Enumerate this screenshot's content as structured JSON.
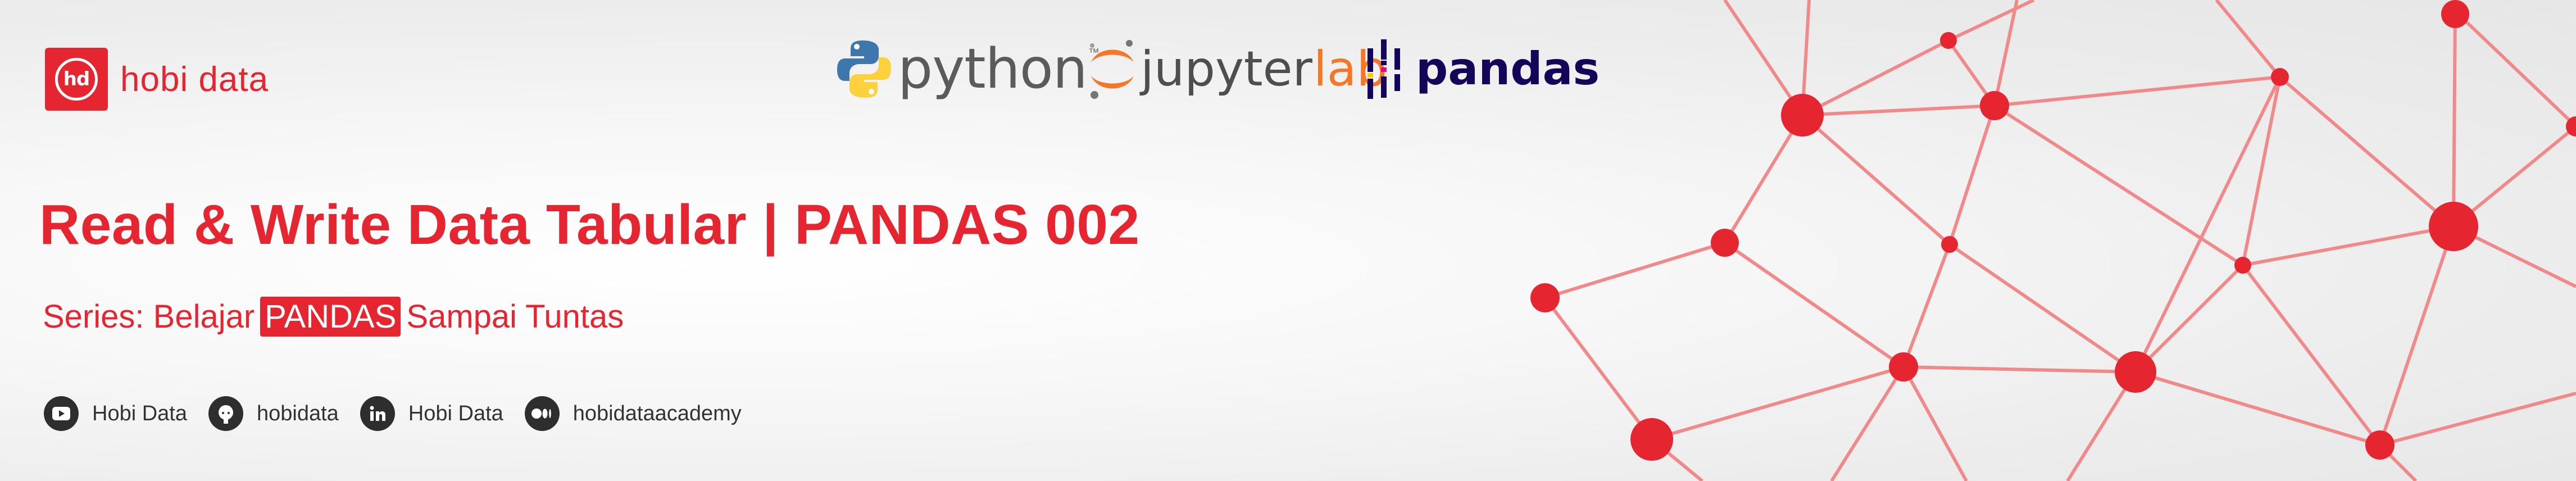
{
  "brand": {
    "logo_text": "hd",
    "name": "hobi data",
    "color": "#e52630"
  },
  "tech_logos": {
    "python": {
      "word": "python",
      "trademark": "™"
    },
    "jupyter": {
      "word": "jupyter",
      "suffix": "lab"
    },
    "pandas": {
      "word": "pandas"
    }
  },
  "title": "Read & Write Data Tabular | PANDAS 002",
  "subtitle": {
    "prefix": "Series: Belajar",
    "highlight": "PANDAS",
    "suffix": "Sampai Tuntas"
  },
  "socials": [
    {
      "icon": "youtube-icon",
      "label": "Hobi Data"
    },
    {
      "icon": "github-icon",
      "label": "hobidata"
    },
    {
      "icon": "linkedin-icon",
      "label": "Hobi Data"
    },
    {
      "icon": "medium-icon",
      "label": "hobidataacademy"
    }
  ],
  "colors": {
    "accent": "#e52630",
    "network_line": "#f08a8a",
    "network_node": "#e52630",
    "pandas_navy": "#150458",
    "jupyter_orange": "#f37726"
  }
}
